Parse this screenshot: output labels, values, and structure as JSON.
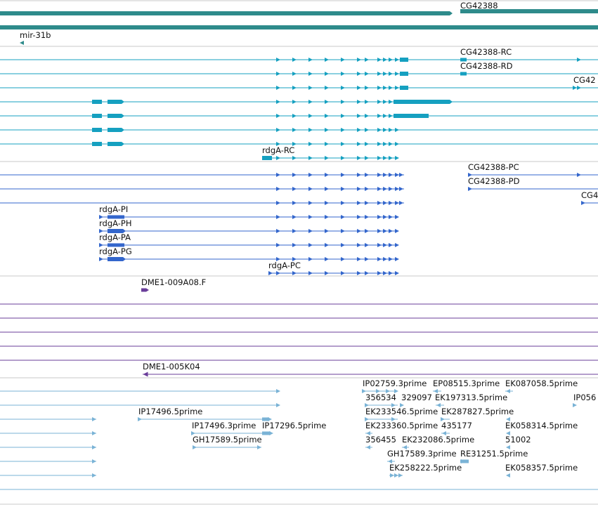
{
  "colors": {
    "gene": "#2e8b8b",
    "transcript": "#15a0c0",
    "protein": "#3366cc",
    "clone": "#6a3d9a",
    "est": "#7ab3d6",
    "separator": "#c8c8c8"
  },
  "icons": {
    "forward_strand": "chevron-right-icon",
    "reverse_strand": "chevron-left-icon"
  },
  "genes": {
    "cg42388": "CG42388",
    "mir31b": "mir-31b"
  },
  "transcripts": {
    "rdga_rc": "rdgA-RC",
    "cg42388_rc": "CG42388-RC",
    "cg42388_rd": "CG42388-RD",
    "cg42_truncated": "CG42"
  },
  "proteins": {
    "rdga_pi": "rdgA-PI",
    "rdga_ph": "rdgA-PH",
    "rdga_pa": "rdgA-PA",
    "rdga_pg": "rdgA-PG",
    "rdga_pc": "rdgA-PC",
    "cg42388_pc": "CG42388-PC",
    "cg42388_pd": "CG42388-PD",
    "cg4_truncated": "CG4"
  },
  "clones": {
    "dme1_009a08": "DME1-009A08.F",
    "dme1_005k04": "DME1-005K04"
  },
  "ests": {
    "l1a": "IP02759.3prime",
    "l1b": "EP08515.3prime",
    "l1c": "EK087058.5prime",
    "l2a": "356534",
    "l2b": "329097",
    "l2c": "EK197313.5prime",
    "l2d": "IP056",
    "l3a": "IP17496.5prime",
    "l3b": "EK233546.5prime",
    "l3c": "EK287827.5prime",
    "l4a": "IP17496.3prime",
    "l4b": "IP17296.5prime",
    "l4c": "EK233360.5prime",
    "l4d": "435177",
    "l4e": "EK058314.5prime",
    "l5a": "GH17589.5prime",
    "l5b": "356455",
    "l5c": "EK232086.5prime",
    "l5d": "51002",
    "l6a": "GH17589.3prime",
    "l6b": "RE31251.5prime",
    "l7a": "EK258222.5prime",
    "l7b": "EK058357.5prime"
  }
}
